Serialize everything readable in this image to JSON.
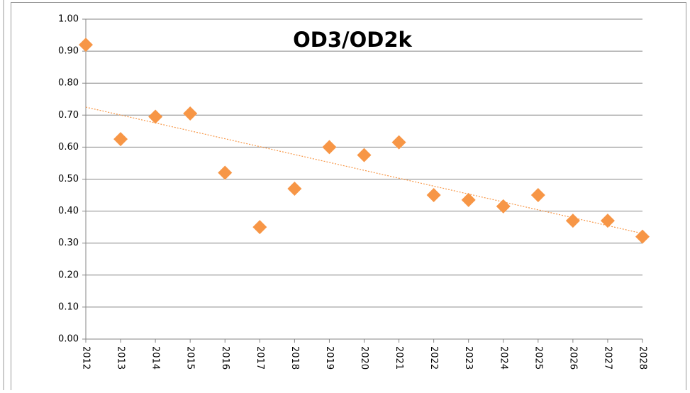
{
  "chart_data": {
    "type": "scatter",
    "title": "OD3/OD2k",
    "x": [
      2012,
      2013,
      2014,
      2015,
      2016,
      2017,
      2018,
      2019,
      2020,
      2021,
      2022,
      2023,
      2024,
      2025,
      2026,
      2027,
      2028
    ],
    "series": [
      {
        "name": "OD3/OD2k",
        "color": "#f79646",
        "values": [
          0.92,
          0.625,
          0.695,
          0.705,
          0.52,
          0.35,
          0.47,
          0.6,
          0.575,
          0.615,
          0.45,
          0.435,
          0.415,
          0.45,
          0.37,
          0.37,
          0.32
        ]
      }
    ],
    "trendline": {
      "x": [
        2012,
        2028
      ],
      "y": [
        0.725,
        0.33
      ],
      "color": "#f79646"
    },
    "xlim": [
      2012,
      2028
    ],
    "xticks": [
      2012,
      2013,
      2014,
      2015,
      2016,
      2017,
      2018,
      2019,
      2020,
      2021,
      2022,
      2023,
      2024,
      2025,
      2026,
      2027,
      2028
    ],
    "ylim": [
      0,
      1
    ],
    "yticks": [
      {
        "value": 0,
        "label": "0.00"
      },
      {
        "value": 0.1,
        "label": "0.10"
      },
      {
        "value": 0.2,
        "label": "0.20"
      },
      {
        "value": 0.3,
        "label": "0.30"
      },
      {
        "value": 0.4,
        "label": "0.40"
      },
      {
        "value": 0.5,
        "label": "0.50"
      },
      {
        "value": 0.6,
        "label": "0.60"
      },
      {
        "value": 0.7,
        "label": "0.70"
      },
      {
        "value": 0.8,
        "label": "0.80"
      },
      {
        "value": 0.9,
        "label": "0.90"
      },
      {
        "value": 1,
        "label": "1.00"
      }
    ],
    "grid": true
  }
}
